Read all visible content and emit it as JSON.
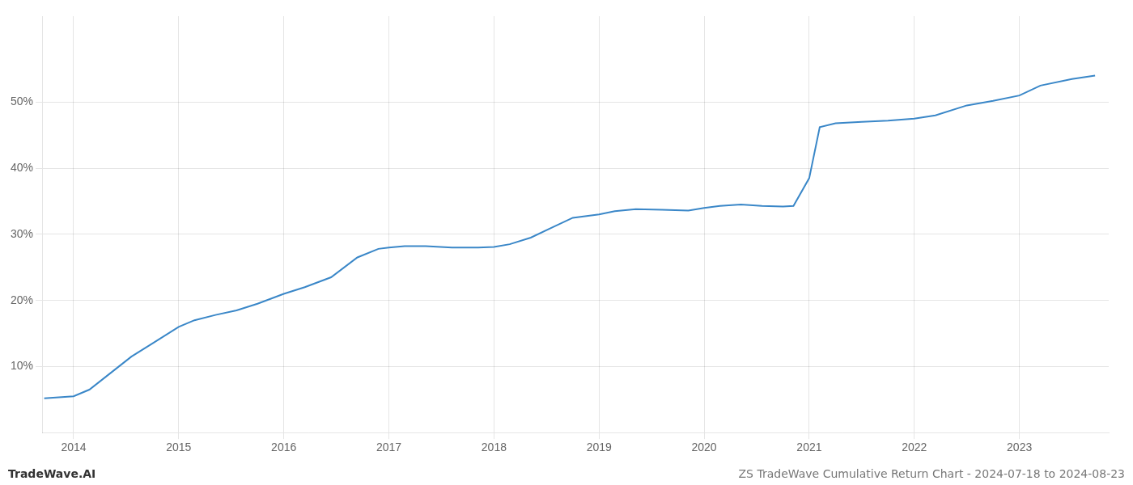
{
  "chart_data": {
    "type": "line",
    "x": [
      2013.72,
      2014.0,
      2014.15,
      2014.35,
      2014.55,
      2014.75,
      2015.0,
      2015.15,
      2015.35,
      2015.55,
      2015.75,
      2016.0,
      2016.2,
      2016.45,
      2016.7,
      2016.9,
      2017.0,
      2017.15,
      2017.35,
      2017.6,
      2017.85,
      2018.0,
      2018.15,
      2018.35,
      2018.55,
      2018.75,
      2019.0,
      2019.15,
      2019.35,
      2019.6,
      2019.85,
      2020.0,
      2020.15,
      2020.35,
      2020.55,
      2020.75,
      2020.85,
      2021.0,
      2021.1,
      2021.25,
      2021.5,
      2021.75,
      2022.0,
      2022.2,
      2022.5,
      2022.75,
      2023.0,
      2023.2,
      2023.5,
      2023.72
    ],
    "values": [
      5.2,
      5.5,
      6.5,
      9.0,
      11.5,
      13.5,
      16.0,
      17.0,
      17.8,
      18.5,
      19.5,
      21.0,
      22.0,
      23.5,
      26.5,
      27.8,
      28.0,
      28.2,
      28.2,
      28.0,
      28.0,
      28.1,
      28.5,
      29.5,
      31.0,
      32.5,
      33.0,
      33.5,
      33.8,
      33.7,
      33.6,
      34.0,
      34.3,
      34.5,
      34.3,
      34.2,
      34.3,
      38.5,
      46.2,
      46.8,
      47.0,
      47.2,
      47.5,
      48.0,
      49.5,
      50.2,
      51.0,
      52.5,
      53.5,
      54.0
    ],
    "color": "#3a87c8",
    "xlim": [
      2013.7,
      2023.85
    ],
    "xticks": [
      2014,
      2015,
      2016,
      2017,
      2018,
      2019,
      2020,
      2021,
      2022,
      2023
    ],
    "ylim": [
      0,
      63
    ],
    "yticks": [
      {
        "value": 10,
        "label": "10%"
      },
      {
        "value": 20,
        "label": "20%"
      },
      {
        "value": 30,
        "label": "30%"
      },
      {
        "value": 40,
        "label": "40%"
      },
      {
        "value": 50,
        "label": "50%"
      }
    ],
    "grid": true,
    "annotations": [
      "TradeWave.AI",
      "ZS TradeWave Cumulative Return Chart - 2024-07-18 to 2024-08-23"
    ]
  }
}
